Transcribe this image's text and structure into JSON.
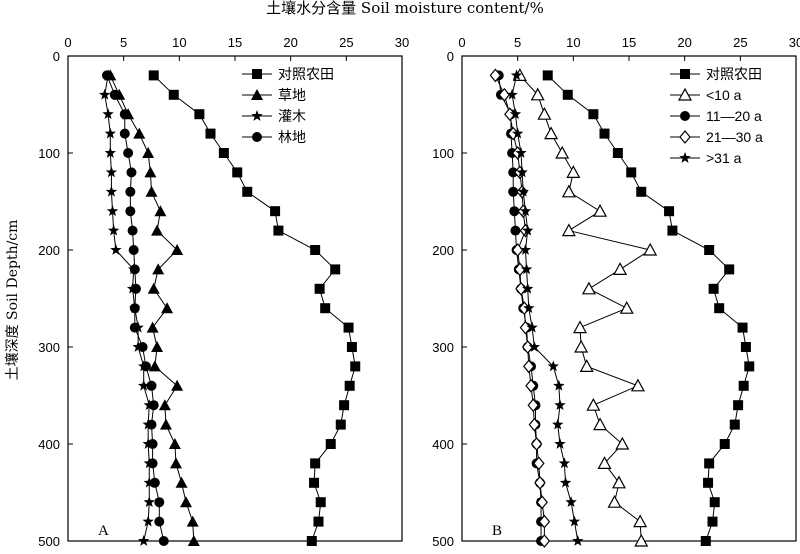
{
  "figure": {
    "top_title": "土壤水分含量 Soil moisture content/%",
    "ylabel": "土壤深度  Soil Depth/cm"
  },
  "chart_data": [
    {
      "type": "line",
      "panel_label": "A",
      "x_axis_position": "top",
      "xlim": [
        0,
        30
      ],
      "ylim": [
        500,
        0
      ],
      "xticks": [
        0,
        5,
        10,
        15,
        20,
        25,
        30
      ],
      "yticks": [
        0,
        100,
        200,
        300,
        400,
        500
      ],
      "xtick_labels": [
        "0",
        "5",
        "10",
        "15",
        "20",
        "25",
        "30"
      ],
      "ytick_labels": [
        "0",
        "100",
        "200",
        "300",
        "400",
        "500"
      ],
      "grid": false,
      "legend_position": "top-right",
      "depths": [
        20,
        40,
        60,
        80,
        100,
        120,
        140,
        160,
        180,
        200,
        220,
        240,
        260,
        280,
        300,
        320,
        340,
        360,
        380,
        400,
        420,
        440,
        460,
        480,
        500
      ],
      "series": [
        {
          "name": "对照农田",
          "marker": "square",
          "values": [
            7.7,
            9.5,
            11.8,
            12.8,
            14.0,
            15.2,
            16.1,
            18.6,
            18.9,
            22.2,
            24.0,
            22.6,
            23.1,
            25.2,
            25.5,
            25.8,
            25.3,
            24.8,
            24.5,
            23.6,
            22.2,
            22.1,
            22.7,
            22.5,
            21.9
          ]
        },
        {
          "name": "草地",
          "marker": "triangle",
          "values": [
            3.8,
            4.6,
            5.4,
            6.4,
            7.2,
            7.4,
            7.5,
            8.3,
            8.0,
            9.8,
            8.1,
            7.7,
            8.9,
            7.6,
            8.0,
            7.8,
            9.8,
            8.7,
            8.8,
            9.6,
            9.7,
            10.2,
            10.6,
            11.2,
            11.3
          ]
        },
        {
          "name": "灌木",
          "marker": "star",
          "values": [
            3.6,
            3.3,
            3.6,
            3.8,
            3.8,
            3.9,
            3.9,
            4.0,
            4.1,
            4.3,
            5.9,
            5.8,
            6.0,
            6.3,
            6.3,
            6.8,
            6.8,
            7.3,
            7.2,
            7.2,
            7.3,
            7.3,
            7.3,
            7.2,
            6.8
          ]
        },
        {
          "name": "林地",
          "marker": "circle",
          "values": [
            3.5,
            4.2,
            5.1,
            5.1,
            5.4,
            5.7,
            5.6,
            5.6,
            5.8,
            5.9,
            6.0,
            6.1,
            6.0,
            6.0,
            6.7,
            7.0,
            7.5,
            7.7,
            7.5,
            7.6,
            7.6,
            7.8,
            8.2,
            8.2,
            8.6
          ]
        }
      ]
    },
    {
      "type": "line",
      "panel_label": "B",
      "x_axis_position": "top",
      "xlim": [
        0,
        30
      ],
      "ylim": [
        500,
        0
      ],
      "xticks": [
        0,
        5,
        10,
        15,
        20,
        25,
        30
      ],
      "yticks": [
        0,
        100,
        200,
        300,
        400,
        500
      ],
      "xtick_labels": [
        "0",
        "5",
        "10",
        "15",
        "20",
        "25",
        "30"
      ],
      "ytick_labels": [
        "0",
        "100",
        "200",
        "300",
        "400",
        "500"
      ],
      "grid": false,
      "legend_position": "top-right",
      "depths": [
        20,
        40,
        60,
        80,
        100,
        120,
        140,
        160,
        180,
        200,
        220,
        240,
        260,
        280,
        300,
        320,
        340,
        360,
        380,
        400,
        420,
        440,
        460,
        480,
        500
      ],
      "series": [
        {
          "name": "对照农田",
          "marker": "square",
          "values": [
            7.7,
            9.5,
            11.8,
            12.8,
            14.0,
            15.2,
            16.1,
            18.6,
            18.9,
            22.2,
            24.0,
            22.6,
            23.1,
            25.2,
            25.5,
            25.8,
            25.3,
            24.8,
            24.5,
            23.6,
            22.2,
            22.1,
            22.7,
            22.5,
            21.9
          ]
        },
        {
          "name": "<10 a",
          "marker": "triangle-open",
          "values": [
            5.2,
            6.8,
            7.4,
            8.0,
            9.0,
            10.0,
            9.6,
            12.4,
            9.6,
            16.9,
            14.2,
            11.4,
            14.8,
            10.6,
            10.7,
            11.2,
            15.8,
            11.8,
            12.4,
            14.4,
            12.8,
            14.1,
            13.7,
            16.0,
            16.1
          ]
        },
        {
          "name": "11—20 a",
          "marker": "circle",
          "values": [
            3.3,
            3.5,
            4.4,
            4.4,
            4.5,
            4.6,
            4.6,
            4.7,
            4.8,
            4.9,
            5.1,
            5.3,
            5.5,
            5.8,
            5.9,
            6.2,
            6.4,
            6.6,
            6.6,
            6.7,
            6.7,
            7.0,
            7.1,
            7.1,
            7.1
          ]
        },
        {
          "name": "21—30 a",
          "marker": "diamond-open",
          "values": [
            3.0,
            3.8,
            4.3,
            4.6,
            5.0,
            5.2,
            5.4,
            5.5,
            5.7,
            5.0,
            5.2,
            5.3,
            5.6,
            5.7,
            5.9,
            6.0,
            6.2,
            6.4,
            6.5,
            6.7,
            6.9,
            7.0,
            7.2,
            7.4,
            7.4
          ]
        },
        {
          "name": ">31 a",
          "marker": "star",
          "values": [
            4.9,
            4.5,
            4.8,
            5.0,
            5.3,
            5.4,
            5.5,
            5.7,
            5.9,
            5.7,
            5.8,
            5.9,
            6.0,
            6.3,
            6.5,
            8.2,
            8.7,
            8.8,
            8.6,
            8.8,
            9.2,
            9.3,
            9.8,
            10.1,
            10.4
          ]
        }
      ]
    }
  ]
}
